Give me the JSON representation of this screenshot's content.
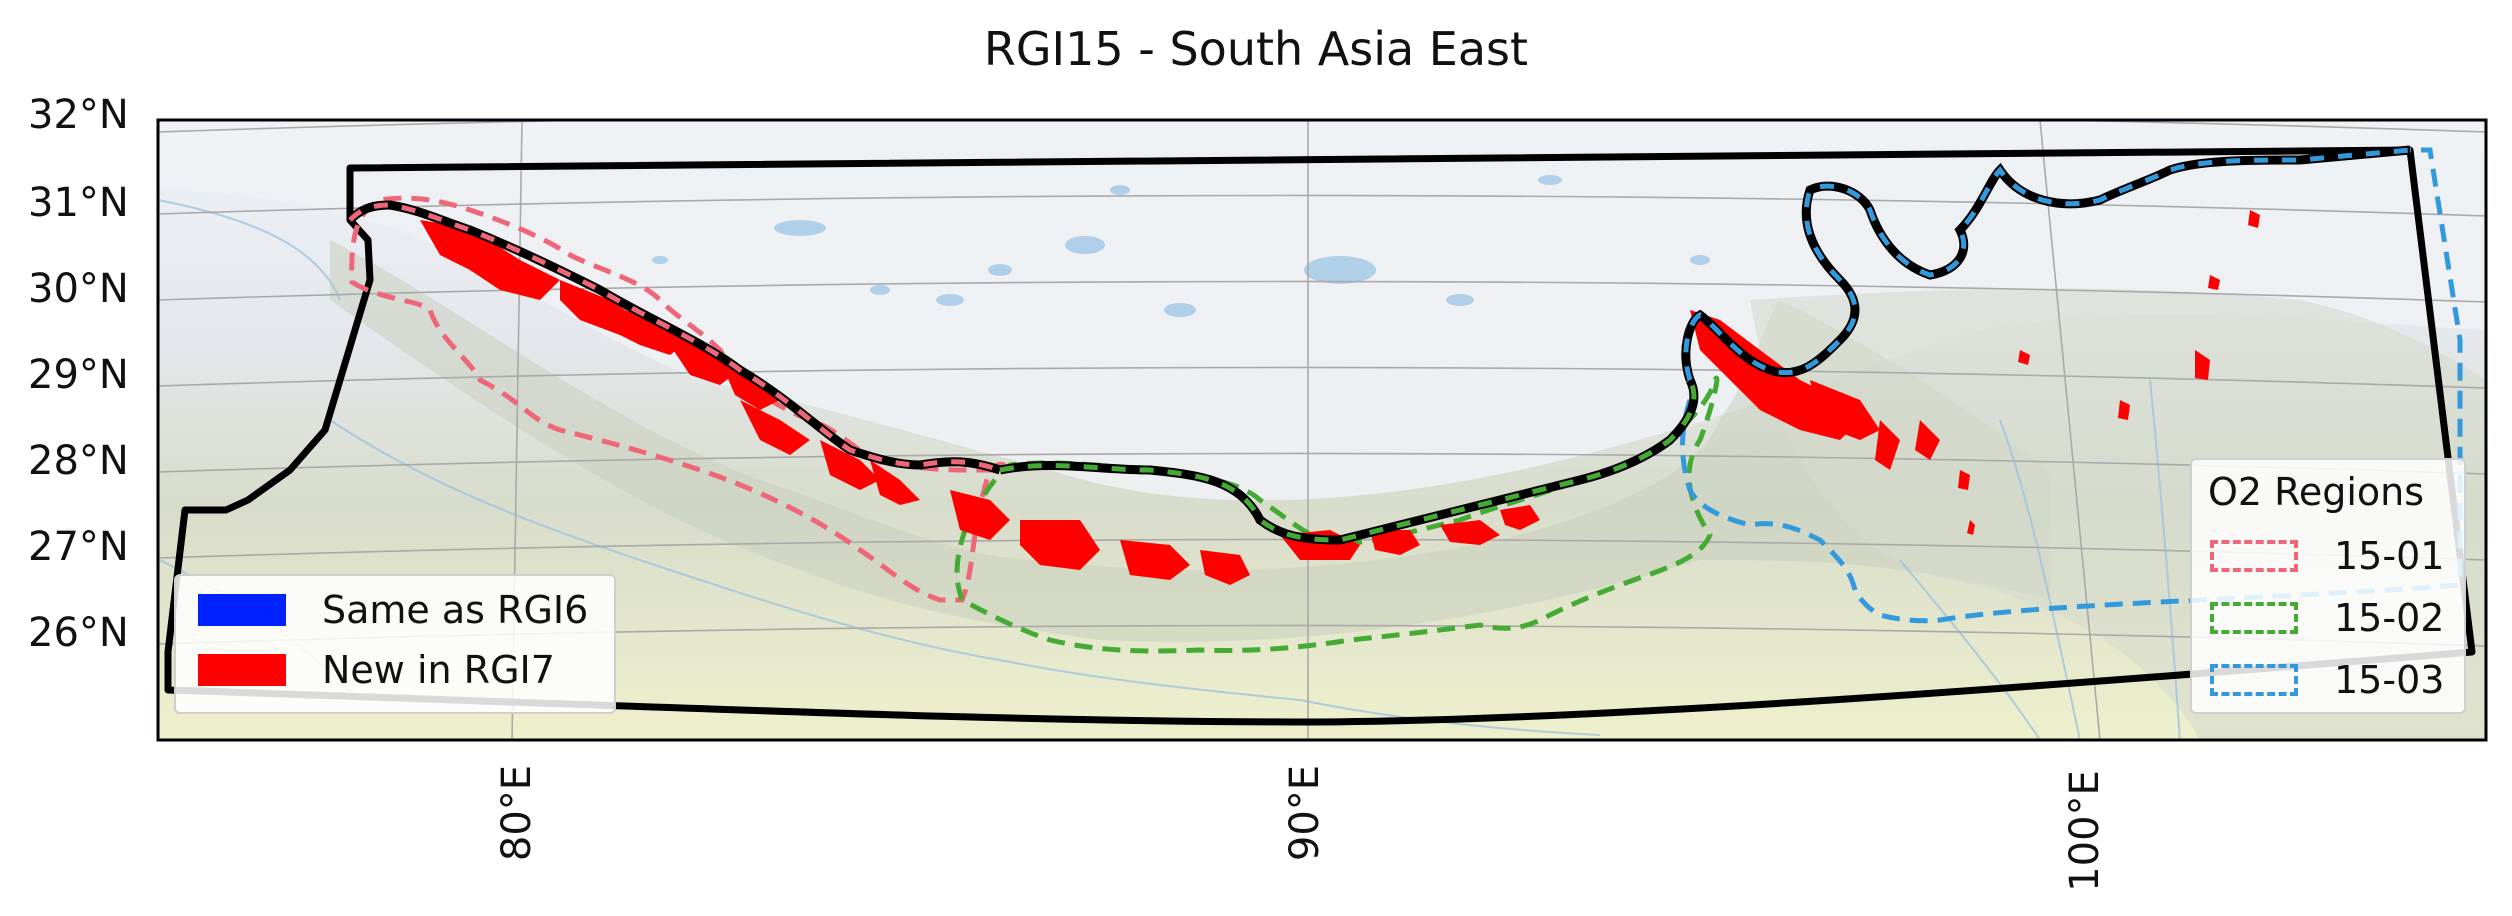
{
  "title": "RGI15 - South Asia East",
  "lat_labels": [
    "32°N",
    "31°N",
    "30°N",
    "29°N",
    "28°N",
    "27°N",
    "26°N"
  ],
  "lon_labels": [
    "80°E",
    "90°E",
    "100°E"
  ],
  "legend_glaciers": {
    "items": [
      {
        "label": "Same as RGI6",
        "color": "#0022ff"
      },
      {
        "label": "New in RGI7",
        "color": "#ff0000"
      }
    ]
  },
  "legend_regions": {
    "title": "O2 Regions",
    "items": [
      {
        "label": "15-01",
        "color": "#ee6677"
      },
      {
        "label": "15-02",
        "color": "#44aa33"
      },
      {
        "label": "15-03",
        "color": "#3399dd"
      }
    ]
  },
  "colors": {
    "region_outline": "#000000",
    "glacier_new": "#ff0000",
    "glacier_same": "#0022ff",
    "region_15_01": "#ee6677",
    "region_15_02": "#44aa33",
    "region_15_03": "#3399dd",
    "plateau": "#e9edf2",
    "lowland": "#eef0cc",
    "lakes": "#a9cbe8"
  }
}
